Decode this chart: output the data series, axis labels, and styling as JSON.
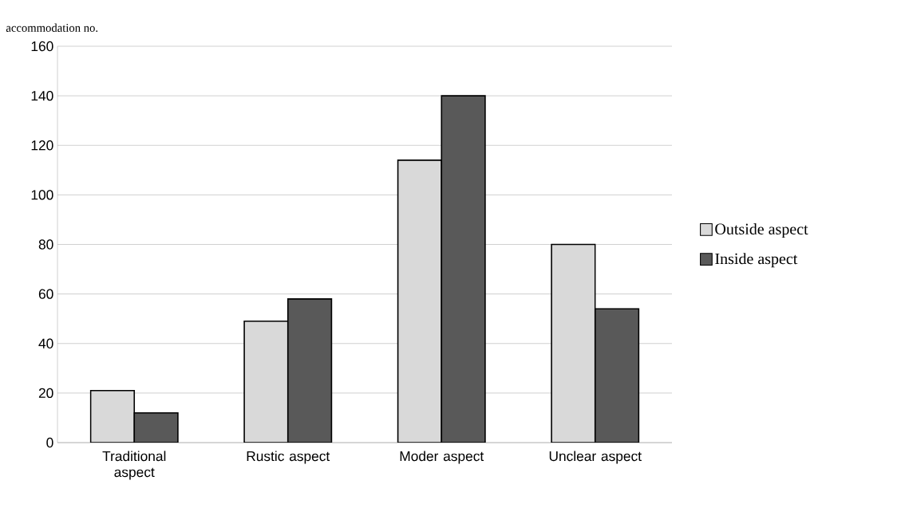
{
  "chart_data": {
    "type": "bar",
    "ylabel": "accommodation no.",
    "categories": [
      "Traditional aspect",
      "Rustic aspect",
      "Moder aspect",
      "Unclear aspect"
    ],
    "series": [
      {
        "name": "Outside aspect",
        "color": "#d9d9d9",
        "values": [
          21,
          49,
          114,
          80
        ]
      },
      {
        "name": "Inside aspect",
        "color": "#595959",
        "values": [
          12,
          58,
          140,
          54
        ]
      }
    ],
    "ylim": [
      0,
      160
    ],
    "yticks": [
      0,
      20,
      40,
      60,
      80,
      100,
      120,
      140,
      160
    ],
    "grid": "y",
    "legend": "right"
  }
}
